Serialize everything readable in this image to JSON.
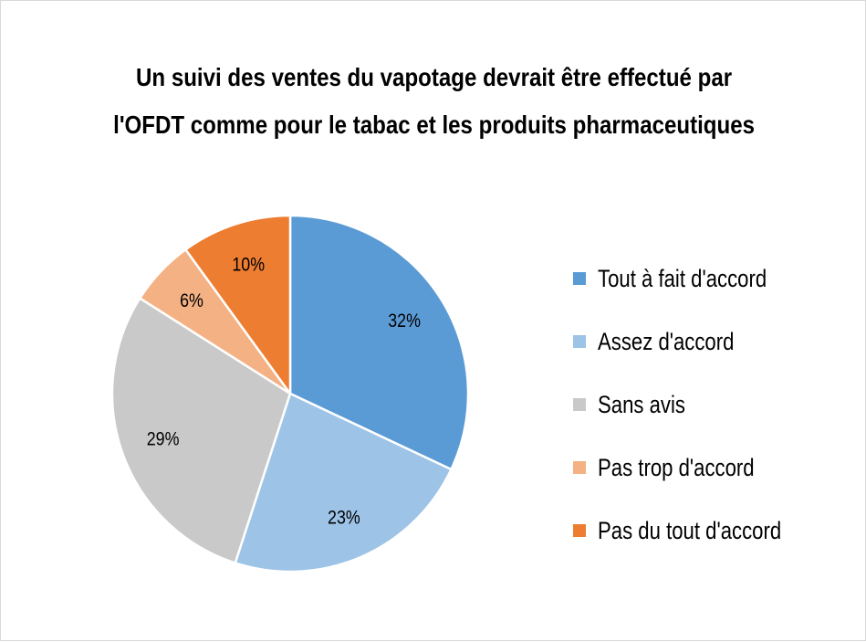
{
  "chart_data": {
    "type": "pie",
    "title_lines": [
      "Un suivi des ventes du vapotage devrait être effectué par",
      "l'OFDT comme pour le tabac et les produits pharmaceutiques"
    ],
    "slices": [
      {
        "label": "Tout à fait d'accord",
        "value": 32,
        "display": "32%",
        "color": "#5b9bd5"
      },
      {
        "label": "Assez d'accord",
        "value": 23,
        "display": "23%",
        "color": "#9dc3e6"
      },
      {
        "label": "Sans avis",
        "value": 29,
        "display": "29%",
        "color": "#c9c9c9"
      },
      {
        "label": "Pas trop d'accord",
        "value": 6,
        "display": "6%",
        "color": "#f4b183"
      },
      {
        "label": "Pas du tout d'accord",
        "value": 10,
        "display": "10%",
        "color": "#ed7d31"
      }
    ],
    "start_angle": "12 o'clock",
    "direction": "clockwise",
    "legend_position": "right"
  }
}
